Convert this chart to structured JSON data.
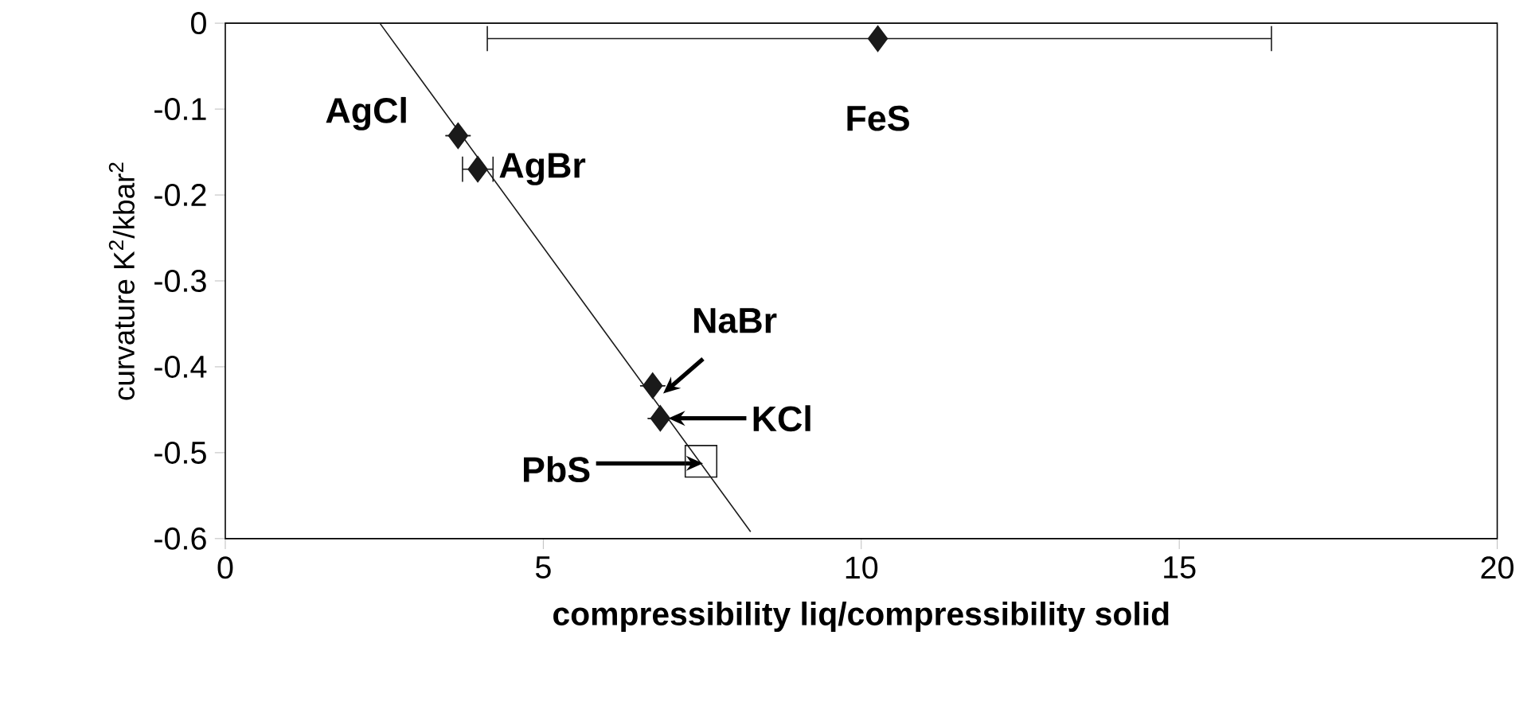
{
  "chart_data": {
    "type": "scatter",
    "xlabel": "compressibility liq/compressibility solid",
    "ylabel": "curvature K$^{2}$/kbar$^{2}$",
    "xlim": [
      0,
      20
    ],
    "xticks": [
      0,
      5,
      10,
      15,
      20
    ],
    "ylim": [
      -0.6,
      0
    ],
    "yticks": [
      -0.6,
      -0.5,
      -0.4,
      -0.3,
      -0.2,
      -0.1,
      0
    ],
    "series": [
      {
        "color": "#1a1a1a",
        "marker": "diamond",
        "x": [
          3.66,
          3.97,
          6.72,
          6.84,
          10.26
        ],
        "values": [
          -0.131,
          -0.17,
          -0.422,
          -0.46,
          -0.018
        ],
        "xerrors": [
          null,
          [
            3.73,
            4.21
          ],
          null,
          null,
          [
            4.12,
            16.45
          ]
        ]
      },
      {
        "color": "#1a1a1a",
        "marker": "square",
        "x": [
          7.48
        ],
        "values": [
          -0.51
        ]
      },
      {
        "type": "line",
        "color": "#1a1a1a",
        "marker": "none",
        "x": [
          2.43,
          8.26
        ],
        "values": [
          0,
          -0.592
        ]
      }
    ],
    "annotations": [
      {
        "text": "AgCl",
        "x": 3.66,
        "y": -0.131
      },
      {
        "text": "AgBr",
        "x": 3.97,
        "y": -0.17
      },
      {
        "text": "FeS",
        "x": 10.26,
        "y": -0.018
      },
      {
        "text": "NaBr",
        "x": 6.72,
        "y": -0.422
      },
      {
        "text": "KCl",
        "x": 6.84,
        "y": -0.46
      },
      {
        "text": "PbS",
        "x": 7.48,
        "y": -0.51
      }
    ]
  }
}
